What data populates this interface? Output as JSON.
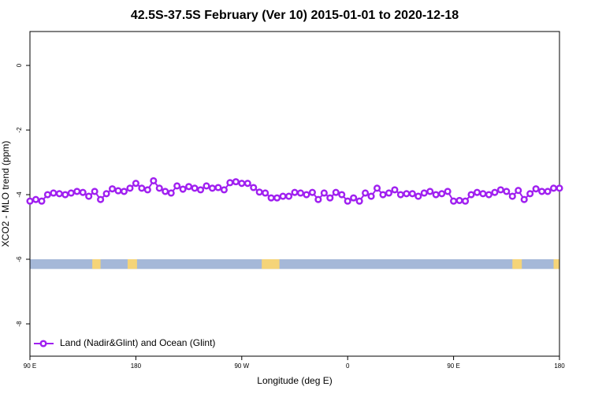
{
  "chart_data": {
    "type": "line",
    "title": "42.5S-37.5S February (Ver 10)   2015-01-01 to 2020-12-18",
    "x_label": "Longitude (deg E)",
    "y_label": "XCO2 - MLO trend (ppm)",
    "x": [
      90,
      95,
      100,
      105,
      110,
      115,
      120,
      125,
      130,
      135,
      140,
      145,
      150,
      155,
      160,
      165,
      170,
      175,
      180,
      185,
      190,
      195,
      200,
      205,
      210,
      215,
      220,
      225,
      230,
      235,
      240,
      245,
      250,
      255,
      260,
      265,
      270,
      275,
      280,
      285,
      290,
      295,
      300,
      305,
      310,
      315,
      320,
      325,
      330,
      335,
      340,
      345,
      350,
      355,
      360,
      365,
      370,
      375,
      380,
      385,
      390,
      395,
      400,
      405,
      410,
      415,
      420,
      425,
      430,
      435,
      440,
      445,
      450,
      455,
      460,
      465,
      470,
      475,
      480,
      485,
      490,
      495,
      500,
      505,
      510,
      515,
      520,
      525,
      530,
      535,
      540
    ],
    "series": [
      {
        "name": "Land (Nadir&Glint) and Ocean (Glint)",
        "color": "#a020f0",
        "values": [
          -4.2,
          -4.15,
          -4.2,
          -4.0,
          -3.95,
          -3.97,
          -4.0,
          -3.95,
          -3.9,
          -3.93,
          -4.05,
          -3.9,
          -4.15,
          -3.97,
          -3.82,
          -3.88,
          -3.9,
          -3.8,
          -3.65,
          -3.8,
          -3.85,
          -3.57,
          -3.8,
          -3.9,
          -3.95,
          -3.73,
          -3.83,
          -3.75,
          -3.8,
          -3.85,
          -3.73,
          -3.8,
          -3.78,
          -3.85,
          -3.63,
          -3.6,
          -3.65,
          -3.65,
          -3.78,
          -3.92,
          -3.95,
          -4.1,
          -4.1,
          -4.05,
          -4.05,
          -3.93,
          -3.95,
          -4.0,
          -3.93,
          -4.15,
          -3.95,
          -4.1,
          -3.93,
          -4.0,
          -4.2,
          -4.1,
          -4.2,
          -3.95,
          -4.05,
          -3.8,
          -4.0,
          -3.95,
          -3.85,
          -4.0,
          -3.97,
          -3.97,
          -4.05,
          -3.95,
          -3.9,
          -4.0,
          -3.97,
          -3.9,
          -4.2,
          -4.18,
          -4.2,
          -4.0,
          -3.93,
          -3.97,
          -4.0,
          -3.93,
          -3.85,
          -3.9,
          -4.05,
          -3.87,
          -4.15,
          -3.97,
          -3.82,
          -3.9,
          -3.9,
          -3.8,
          -3.8
        ]
      }
    ],
    "xlim": [
      90,
      540
    ],
    "ylim": [
      -9,
      1.05
    ],
    "xticks": [
      {
        "value": 90,
        "label": "90 E"
      },
      180,
      {
        "value": 270,
        "label": "90 W"
      },
      {
        "value": 360,
        "label": "0"
      },
      {
        "value": 450,
        "label": "90 E"
      },
      {
        "value": 540,
        "label": "180"
      }
    ],
    "yticks": [
      0,
      -2,
      -4,
      -6,
      -8
    ],
    "band_range": [
      -6.3,
      -6.0
    ],
    "band_color": "#a5b8d8",
    "land_color": "#f5d478",
    "land_segments": [
      [
        143,
        150
      ],
      [
        173,
        181
      ],
      [
        287,
        302
      ],
      [
        500,
        508
      ],
      [
        535,
        540
      ]
    ],
    "legend": "bottom-left"
  }
}
